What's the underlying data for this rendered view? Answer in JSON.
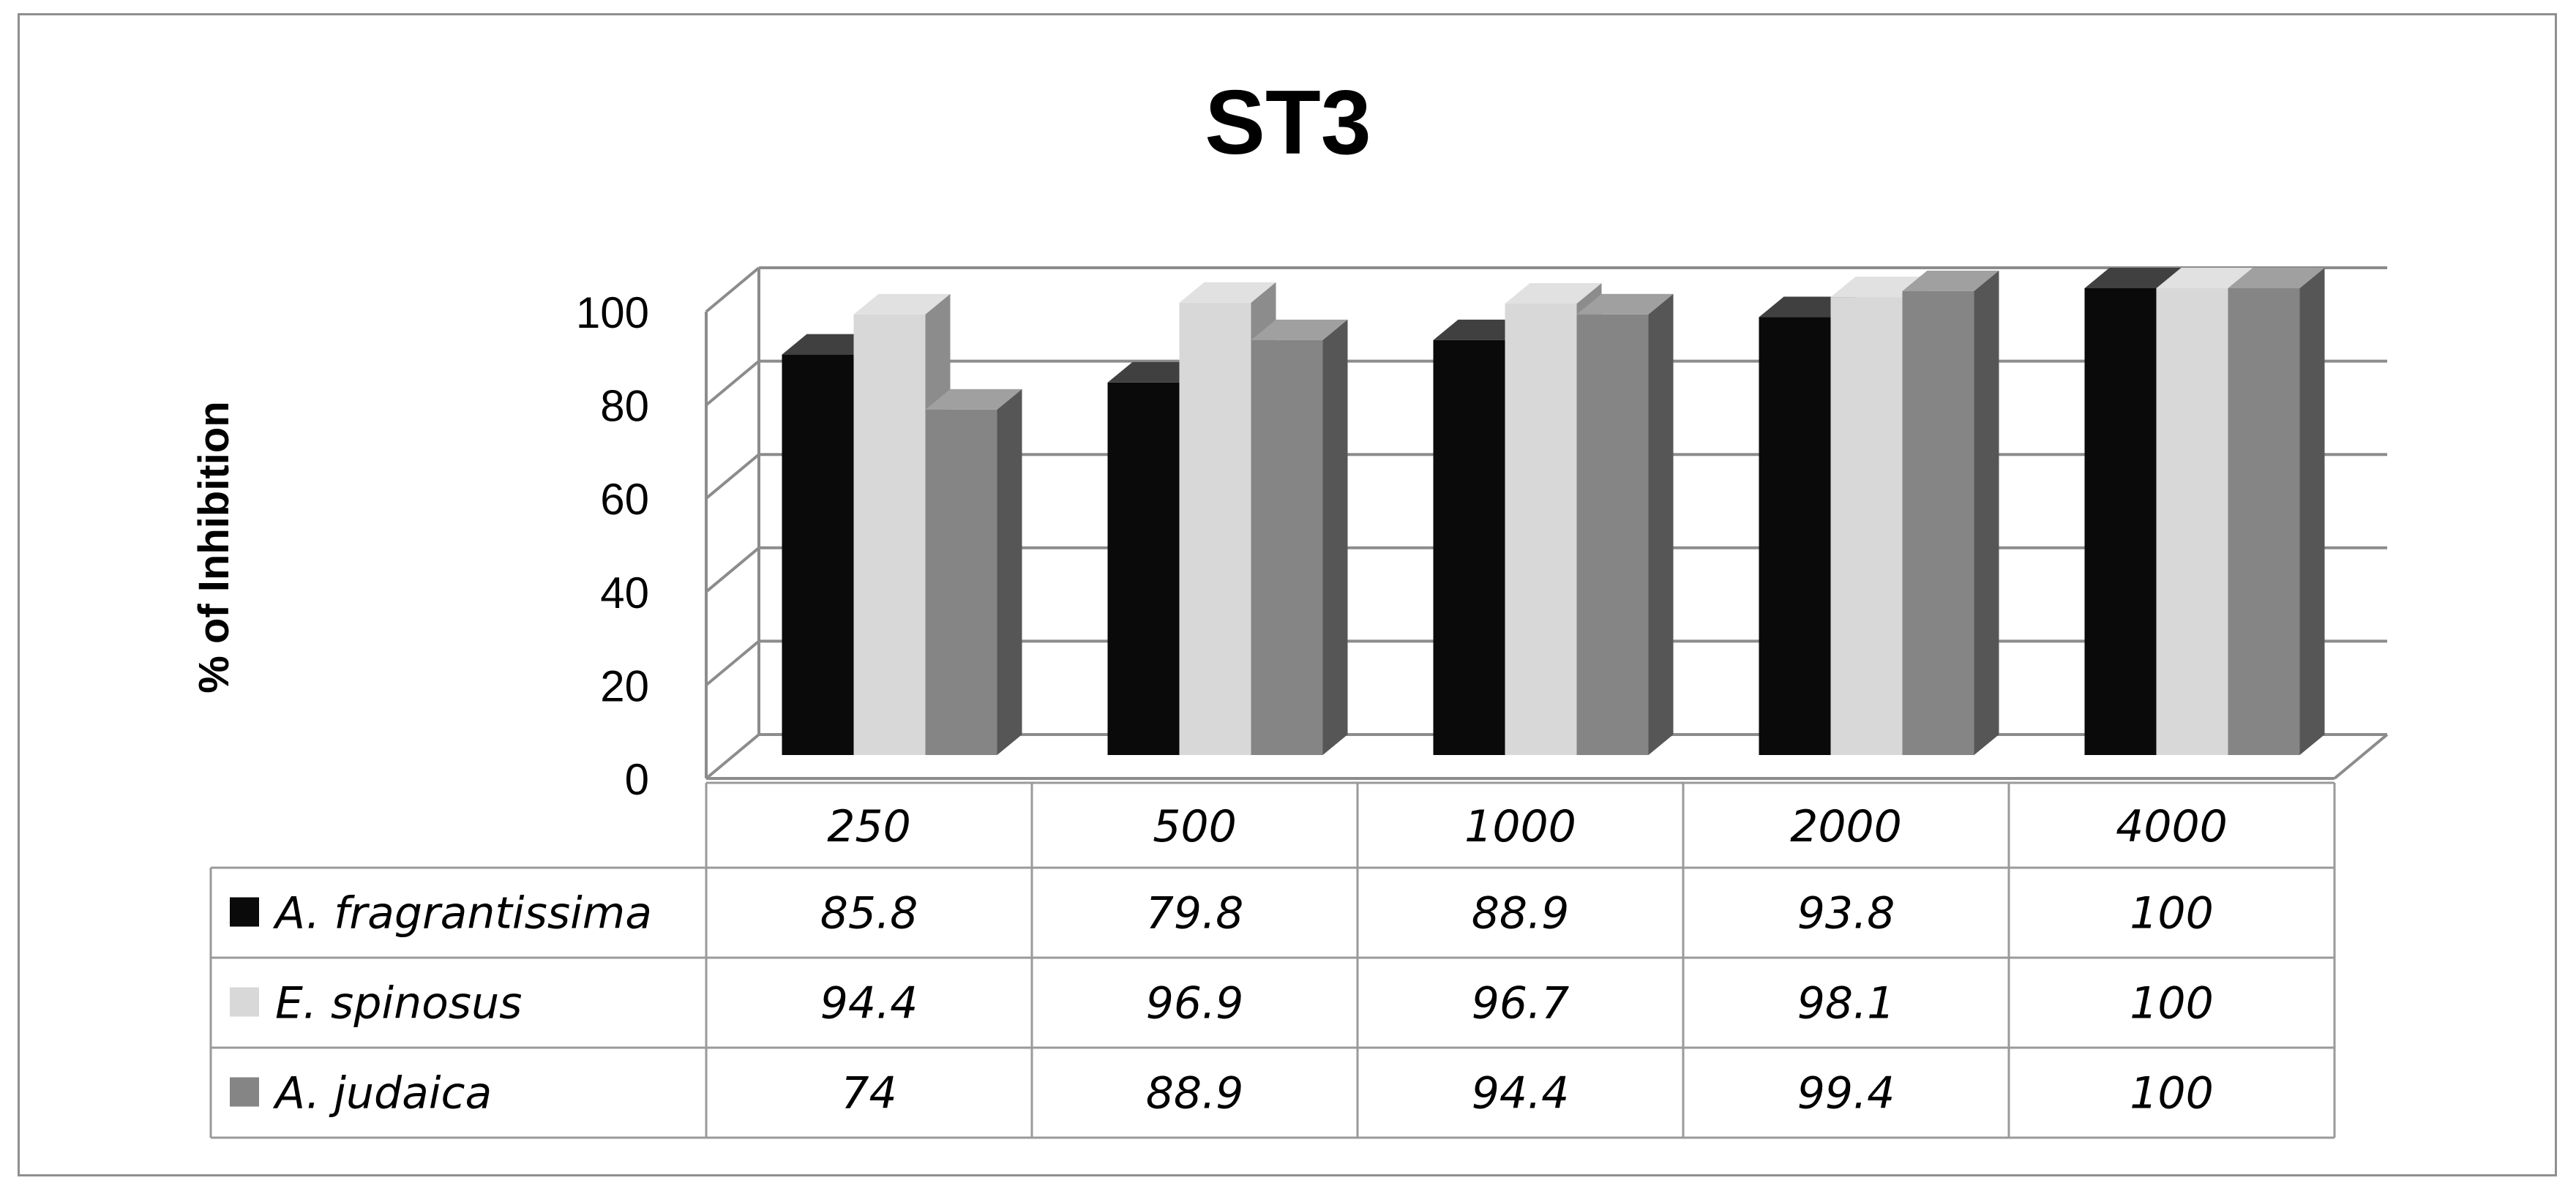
{
  "chart_data": {
    "type": "bar",
    "title": "ST3",
    "ylabel": "% of Inhibition",
    "xlabel": "",
    "categories": [
      "250",
      "500",
      "1000",
      "2000",
      "4000"
    ],
    "ylim": [
      0,
      100
    ],
    "yticks": [
      "0",
      "20",
      "40",
      "60",
      "80",
      "100"
    ],
    "grid": true,
    "legend": "table-below",
    "series": [
      {
        "name": "A. fragrantissima",
        "color": "#0a0a0a",
        "values": [
          85.8,
          79.8,
          88.9,
          93.8,
          100
        ],
        "labels": [
          "85.8",
          "79.8",
          "88.9",
          "93.8",
          "100"
        ]
      },
      {
        "name": "E. spinosus",
        "color": "#d8d8d8",
        "values": [
          94.4,
          96.9,
          96.7,
          98.1,
          100
        ],
        "labels": [
          "94.4",
          "96.9",
          "96.7",
          "98.1",
          "100"
        ]
      },
      {
        "name": "A. judaica",
        "color": "#858585",
        "values": [
          74,
          88.9,
          94.4,
          99.4,
          100
        ],
        "labels": [
          "74",
          "88.9",
          "94.4",
          "99.4",
          "100"
        ]
      }
    ]
  }
}
